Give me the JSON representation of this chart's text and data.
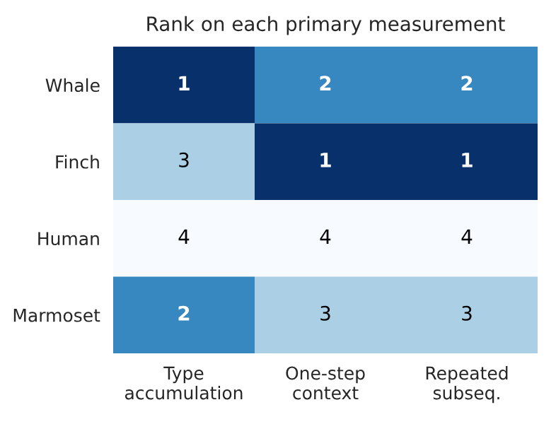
{
  "chart_data": {
    "type": "heatmap",
    "title": "Rank on each primary measurement",
    "categories": [
      "Type\naccumulation",
      "One-step\ncontext",
      "Repeated\nsubseq."
    ],
    "y_categories": [
      "Whale",
      "Finch",
      "Human",
      "Marmoset"
    ],
    "data_labels": true,
    "cells": [
      [
        1,
        2,
        2
      ],
      [
        3,
        1,
        1
      ],
      [
        4,
        4,
        4
      ],
      [
        2,
        3,
        3
      ]
    ]
  }
}
